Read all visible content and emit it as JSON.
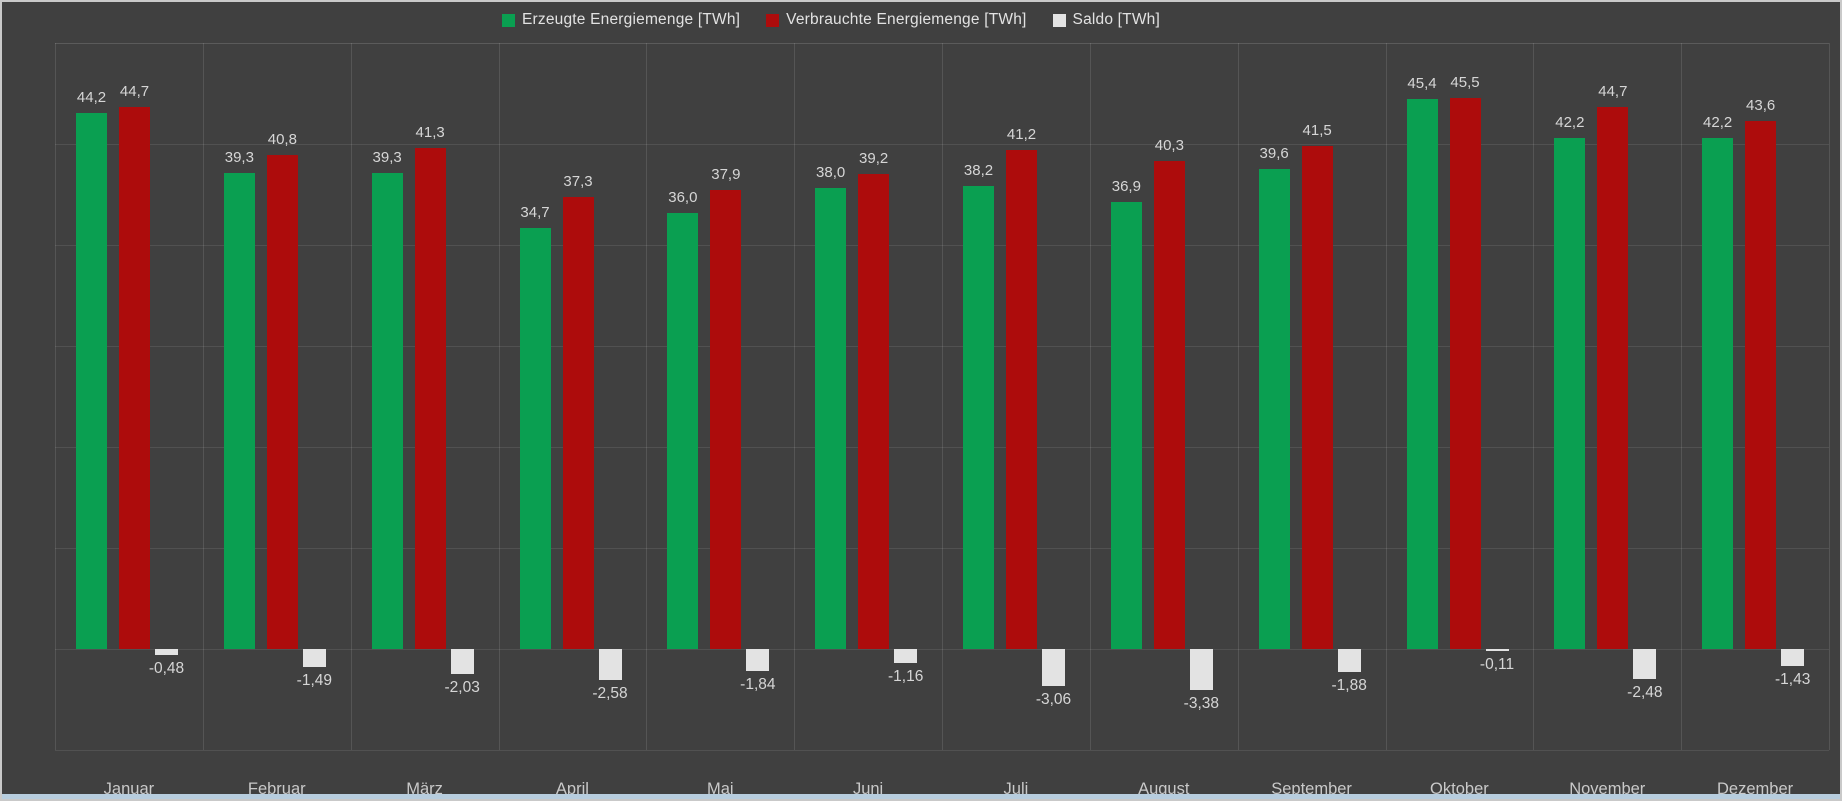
{
  "legend": {
    "items": [
      {
        "label": "Erzeugte Energiemenge [TWh]",
        "color": "#0a9f51"
      },
      {
        "label": "Verbrauchte Energiemenge [TWh]",
        "color": "#ad0c0c"
      },
      {
        "label": "Saldo [TWh]",
        "color": "#e3e3e3"
      }
    ]
  },
  "chart_data": {
    "type": "bar",
    "title": "",
    "xlabel": "",
    "ylabel": "",
    "categories": [
      "Januar",
      "Februar",
      "März",
      "April",
      "Mai",
      "Juni",
      "Juli",
      "August",
      "September",
      "Oktober",
      "November",
      "Dezember"
    ],
    "series": [
      {
        "name": "Erzeugte Energiemenge [TWh]",
        "color": "#0a9f51",
        "values": [
          44.2,
          39.3,
          39.3,
          34.7,
          36.0,
          38.0,
          38.2,
          36.9,
          39.6,
          45.4,
          42.2,
          42.2
        ],
        "labels": [
          "44,2",
          "39,3",
          "39,3",
          "34,7",
          "36,0",
          "38,0",
          "38,2",
          "36,9",
          "39,6",
          "45,4",
          "42,2",
          "42,2"
        ]
      },
      {
        "name": "Verbrauchte Energiemenge [TWh]",
        "color": "#ad0c0c",
        "values": [
          44.7,
          40.8,
          41.3,
          37.3,
          37.9,
          39.2,
          41.2,
          40.3,
          41.5,
          45.5,
          44.7,
          43.6
        ],
        "labels": [
          "44,7",
          "40,8",
          "41,3",
          "37,3",
          "37,9",
          "39,2",
          "41,2",
          "40,3",
          "41,5",
          "45,5",
          "44,7",
          "43,6"
        ]
      },
      {
        "name": "Saldo [TWh]",
        "color": "#e3e3e3",
        "values": [
          -0.48,
          -1.49,
          -2.03,
          -2.58,
          -1.84,
          -1.16,
          -3.06,
          -3.38,
          -1.88,
          -0.11,
          -2.48,
          -1.43
        ],
        "labels": [
          "-0,48",
          "-1,49",
          "-2,03",
          "-2,58",
          "-1,84",
          "-1,16",
          "-3,06",
          "-3,38",
          "-1,88",
          "-0,11",
          "-2,48",
          "-1,43"
        ]
      }
    ],
    "ylim": [
      -8.33,
      50
    ],
    "grid": true,
    "legend_position": "top"
  },
  "colors": {
    "background": "#404040",
    "frame_border": "#c9c9c9",
    "gridline": "rgba(255,255,255,0.10)",
    "value_label": "#d6d6d6",
    "month_label": "#c9c9c9",
    "legend_text": "#e2e2e2",
    "bottom_accent": "#b7cdde"
  }
}
